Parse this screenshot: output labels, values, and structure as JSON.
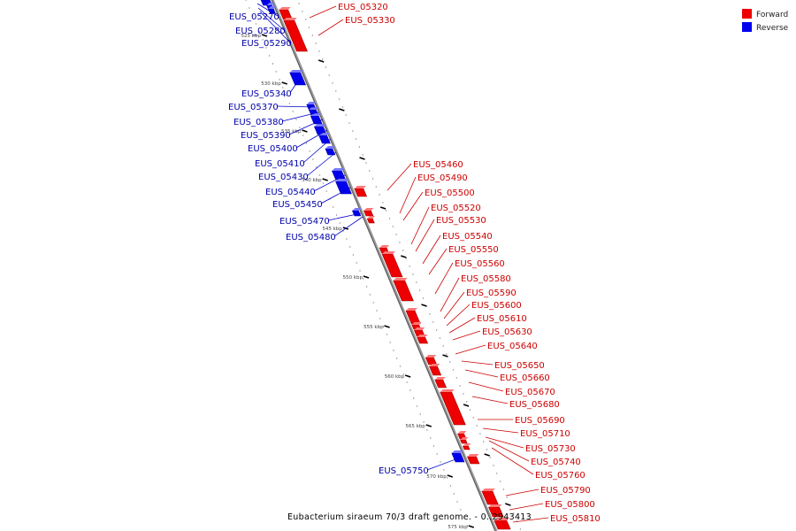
{
  "caption": "Eubacterium siraeum 70/3 draft genome. - 0..2943413",
  "legend": [
    {
      "label": "Forward",
      "color": "#ee0000"
    },
    {
      "label": "Reverse",
      "color": "#0000ee"
    }
  ],
  "ticks": [
    "525 kbp",
    "530 kbp",
    "535 kbp",
    "540 kbp",
    "545 kbp",
    "550 kbp",
    "555 kbp",
    "560 kbp",
    "565 kbp",
    "570 kbp",
    "575 kbp"
  ],
  "reverse_genes": [
    "EUS_05270",
    "EUS_05280",
    "EUS_05290",
    "EUS_05340",
    "EUS_05370",
    "EUS_05380",
    "EUS_05390",
    "EUS_05400",
    "EUS_05410",
    "EUS_05430",
    "EUS_05440",
    "EUS_05450",
    "EUS_05470",
    "EUS_05480",
    "EUS_05750"
  ],
  "forward_genes": [
    "EUS_05320",
    "EUS_05330",
    "EUS_05460",
    "EUS_05490",
    "EUS_05500",
    "EUS_05520",
    "EUS_05530",
    "EUS_05540",
    "EUS_05550",
    "EUS_05560",
    "EUS_05580",
    "EUS_05590",
    "EUS_05600",
    "EUS_05610",
    "EUS_05630",
    "EUS_05640",
    "EUS_05650",
    "EUS_05660",
    "EUS_05670",
    "EUS_05680",
    "EUS_05690",
    "EUS_05710",
    "EUS_05730",
    "EUS_05740",
    "EUS_05760",
    "EUS_05790",
    "EUS_05800",
    "EUS_05810"
  ]
}
